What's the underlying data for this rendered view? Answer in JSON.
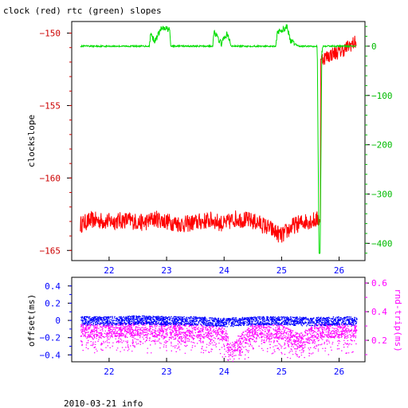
{
  "title": "clock (red) rtc (green) slopes",
  "footer": "2010-03-21 info",
  "colors": {
    "clock": "#ff0000",
    "rtc": "#00dd00",
    "offset": "#0000ff",
    "rndtrip": "#ff00ff",
    "axis_left_top": "#cc0000",
    "axis_right_top": "#00bb00",
    "axis_left_bottom": "#0000ff",
    "axis_right_bottom": "#ff00ff",
    "x_ticks": "#0000ff"
  },
  "chart_data": [
    {
      "type": "line",
      "title": "clock (red) rtc (green) slopes",
      "xlim": [
        21.35,
        26.45
      ],
      "x_ticks": [
        "22",
        "23",
        "24",
        "25",
        "26"
      ],
      "ylabel": "clockslope",
      "ylim_left": [
        -165.7,
        -149.2
      ],
      "y_ticks_left": [
        "-150",
        "-155",
        "-160",
        "-165"
      ],
      "ylim_right": [
        -435,
        50
      ],
      "y_ticks_right": [
        "0",
        "-100",
        "-200",
        "-300",
        "-400"
      ],
      "grid": false,
      "series": [
        {
          "name": "clock",
          "color": "red",
          "axis": "left",
          "x": [
            21.5,
            21.7,
            22.0,
            22.3,
            22.6,
            22.8,
            23.0,
            23.3,
            23.6,
            23.8,
            24.0,
            24.2,
            24.4,
            24.6,
            24.8,
            25.0,
            25.2,
            25.4,
            25.6,
            25.67,
            25.68,
            25.8,
            25.9,
            26.0,
            26.1,
            26.2,
            26.3
          ],
          "y": [
            -163.2,
            -162.9,
            -163.0,
            -162.9,
            -163.1,
            -162.8,
            -163.0,
            -163.2,
            -163.0,
            -162.9,
            -163.2,
            -162.8,
            -162.9,
            -163.1,
            -163.5,
            -164.0,
            -163.3,
            -163.0,
            -162.9,
            -162.8,
            -151.8,
            -151.6,
            -151.4,
            -151.3,
            -151.1,
            -150.8,
            -150.6
          ]
        },
        {
          "name": "rtc",
          "color": "green",
          "axis": "right",
          "x": [
            21.5,
            22.7,
            22.72,
            22.8,
            22.9,
            23.05,
            23.07,
            23.8,
            23.82,
            23.95,
            24.05,
            24.1,
            24.12,
            24.9,
            24.92,
            25.1,
            25.15,
            25.3,
            25.62,
            25.65,
            25.67,
            25.7,
            25.72,
            26.0,
            26.3
          ],
          "y": [
            0,
            0,
            25,
            10,
            35,
            35,
            0,
            0,
            30,
            5,
            25,
            10,
            0,
            0,
            25,
            40,
            10,
            0,
            0,
            -420,
            -420,
            -10,
            0,
            0,
            0
          ]
        }
      ]
    },
    {
      "type": "scatter",
      "xlim": [
        21.35,
        26.45
      ],
      "x_ticks": [
        "22",
        "23",
        "24",
        "25",
        "26"
      ],
      "ylabel_left": "offset(ms)",
      "ylabel_right": "rnd-trip(ms)",
      "ylim_left": [
        -0.48,
        0.5
      ],
      "y_ticks_left": [
        "0.4",
        "0.2",
        "0",
        "-0.2",
        "-0.4"
      ],
      "ylim_right": [
        0.05,
        0.64
      ],
      "y_ticks_right": [
        "0.6",
        "0.4",
        "0.2"
      ],
      "grid": false,
      "series": [
        {
          "name": "offset",
          "color": "blue",
          "axis": "left",
          "x": [
            21.5,
            22.0,
            22.5,
            23.0,
            23.5,
            24.0,
            24.5,
            25.0,
            25.5,
            26.0,
            26.3
          ],
          "y": [
            0.0,
            0.0,
            0.01,
            0.0,
            0.0,
            -0.02,
            0.0,
            0.0,
            -0.01,
            0.0,
            0.0
          ]
        },
        {
          "name": "rnd-trip",
          "color": "magenta",
          "axis": "right",
          "x": [
            21.5,
            22.0,
            22.5,
            23.0,
            23.5,
            24.0,
            24.1,
            24.5,
            25.0,
            25.3,
            25.6,
            26.0,
            26.3
          ],
          "y": [
            0.27,
            0.27,
            0.28,
            0.27,
            0.27,
            0.25,
            0.14,
            0.27,
            0.26,
            0.2,
            0.27,
            0.27,
            0.27
          ]
        }
      ]
    }
  ]
}
